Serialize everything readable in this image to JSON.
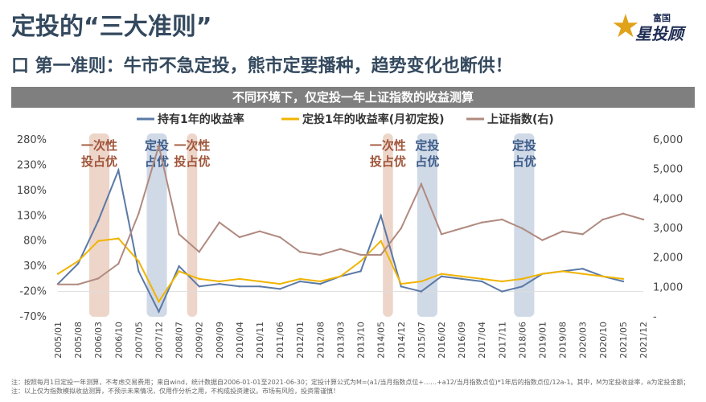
{
  "title": "定投的“三大准则”",
  "logo": {
    "top": "富国",
    "main": "星投顾"
  },
  "subtitle": "口 第一准则：牛市不急定投，熊市定要播种，趋势变化也断供！",
  "banner": "不同环境下，仅定投一年上证指数的收益测算",
  "footnote": "注：按照每月1日定投一年测算，不考虑交易费用；来自wind，统计数据自2006-01-01至2021-06-30；定投计算公式为M=(a1/当月指数点位+……+a12/当月指数点位)*1年后的指数点位/12a-1。其中，M为定投收益率，a为定投金额；注：以上仅为指数模拟收益测算，不预示未来情况，仅用作分析之用，不构成投资建议。市场有风险，投资需谨慎！",
  "chart_data": {
    "type": "line",
    "x": [
      "2005/01",
      "2005/08",
      "2006/03",
      "2006/10",
      "2007/05",
      "2007/12",
      "2008/07",
      "2009/02",
      "2009/09",
      "2010/04",
      "2010/11",
      "2011/06",
      "2012/01",
      "2012/08",
      "2013/03",
      "2013/10",
      "2014/05",
      "2014/12",
      "2015/07",
      "2016/02",
      "2016/09",
      "2017/04",
      "2017/11",
      "2018/06",
      "2019/01",
      "2019/08",
      "2020/03",
      "2020/10",
      "2021/05",
      "2021/12"
    ],
    "yleft_ticks": [
      "280%",
      "230%",
      "180%",
      "130%",
      "80%",
      "30%",
      "-20%",
      "-70%"
    ],
    "yleft_lim": [
      -70,
      280
    ],
    "yright_ticks": [
      "6,000",
      "5,000",
      "4,000",
      "3,000",
      "2,000",
      "1,000",
      "-"
    ],
    "yright_lim": [
      0,
      6000
    ],
    "series": [
      {
        "name": "持有1年的收益率",
        "color": "#5b79a6",
        "axis": "left",
        "values": [
          -5,
          35,
          120,
          220,
          20,
          -60,
          30,
          -10,
          -5,
          -10,
          -10,
          -15,
          0,
          -5,
          10,
          20,
          130,
          -10,
          -20,
          10,
          5,
          0,
          -20,
          -10,
          15,
          20,
          25,
          10,
          0,
          null
        ]
      },
      {
        "name": "定投1年的收益率(月初定投)",
        "color": "#f0b400",
        "axis": "left",
        "values": [
          15,
          40,
          80,
          85,
          40,
          -40,
          20,
          5,
          0,
          5,
          0,
          -5,
          5,
          0,
          10,
          40,
          80,
          -5,
          0,
          15,
          10,
          5,
          0,
          5,
          15,
          20,
          15,
          10,
          5,
          null
        ]
      },
      {
        "name": "上证指数(右)",
        "color": "#b08a7f",
        "axis": "right",
        "values": [
          1100,
          1100,
          1300,
          1800,
          3500,
          5800,
          2800,
          2200,
          3200,
          2700,
          2900,
          2700,
          2200,
          2100,
          2300,
          2100,
          2100,
          3000,
          4500,
          2800,
          3000,
          3200,
          3300,
          3000,
          2600,
          2900,
          2800,
          3300,
          3500,
          3300
        ]
      }
    ],
    "zones": [
      {
        "label": "一次性\n投占优",
        "color": "#e7c7b7",
        "start": 1.55,
        "end": 2.55
      },
      {
        "label": "定投\n占优",
        "color": "#c0ccde",
        "start": 4.4,
        "end": 5.4
      },
      {
        "label": "一次性\n投占优",
        "color": "#e7c7b7",
        "start": 6.4,
        "end": 6.9
      },
      {
        "label": "一次性\n投占优",
        "color": "#e7c7b7",
        "start": 16.1,
        "end": 16.6
      },
      {
        "label": "定投\n占优",
        "color": "#c0ccde",
        "start": 17.8,
        "end": 18.8
      },
      {
        "label": "定投\n占优",
        "color": "#c0ccde",
        "start": 22.6,
        "end": 23.6
      }
    ]
  }
}
